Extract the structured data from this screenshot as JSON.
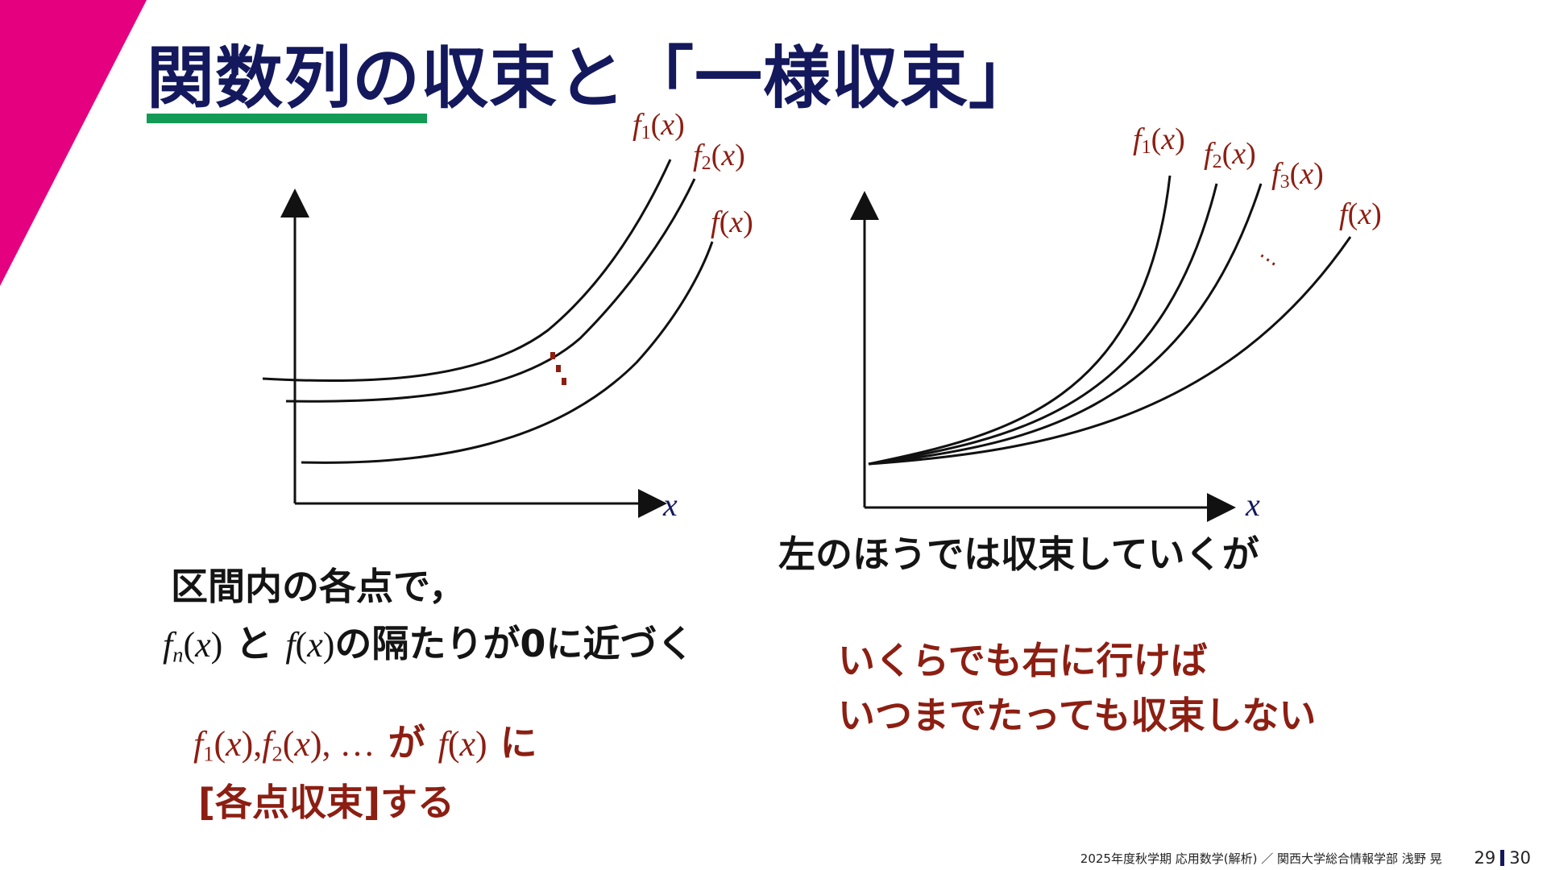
{
  "title": "関数列の収束と「一様収束」",
  "colors": {
    "accent_magenta": "#e5007f",
    "underline_green": "#139a55",
    "title_navy": "#14185c",
    "dark_red": "#8c1e12"
  },
  "left_graph": {
    "label_f1": "f1(x)",
    "label_f2": "f2(x)",
    "label_f": "f(x)",
    "axis_x": "x"
  },
  "right_graph": {
    "label_f1": "f1(x)",
    "label_f2": "f2(x)",
    "label_f3": "f3(x)",
    "label_f": "f(x)",
    "axis_x": "x",
    "dots": "…"
  },
  "left_text": {
    "line1": "区間内の各点で，",
    "line2_fn": "fn(x)",
    "line2_and": " と ",
    "line2_f": "f(x)",
    "line2_rest": "の隔たりが0に近づく",
    "red_math": "f1(x),f2(x), …",
    "red_ga": " が ",
    "red_fx": "f(x)",
    "red_ni": " に",
    "red_line2": "[各点収束]する"
  },
  "right_text": {
    "line1": "左のほうでは収束していくが",
    "red_line1": "いくらでも右に行けば",
    "red_line2": "いつまでたっても収束しない"
  },
  "footer": {
    "text": "2025年度秋学期 応用数学(解析) ／ 関西大学総合情報学部 浅野 晃",
    "page": "29",
    "total": "30"
  }
}
